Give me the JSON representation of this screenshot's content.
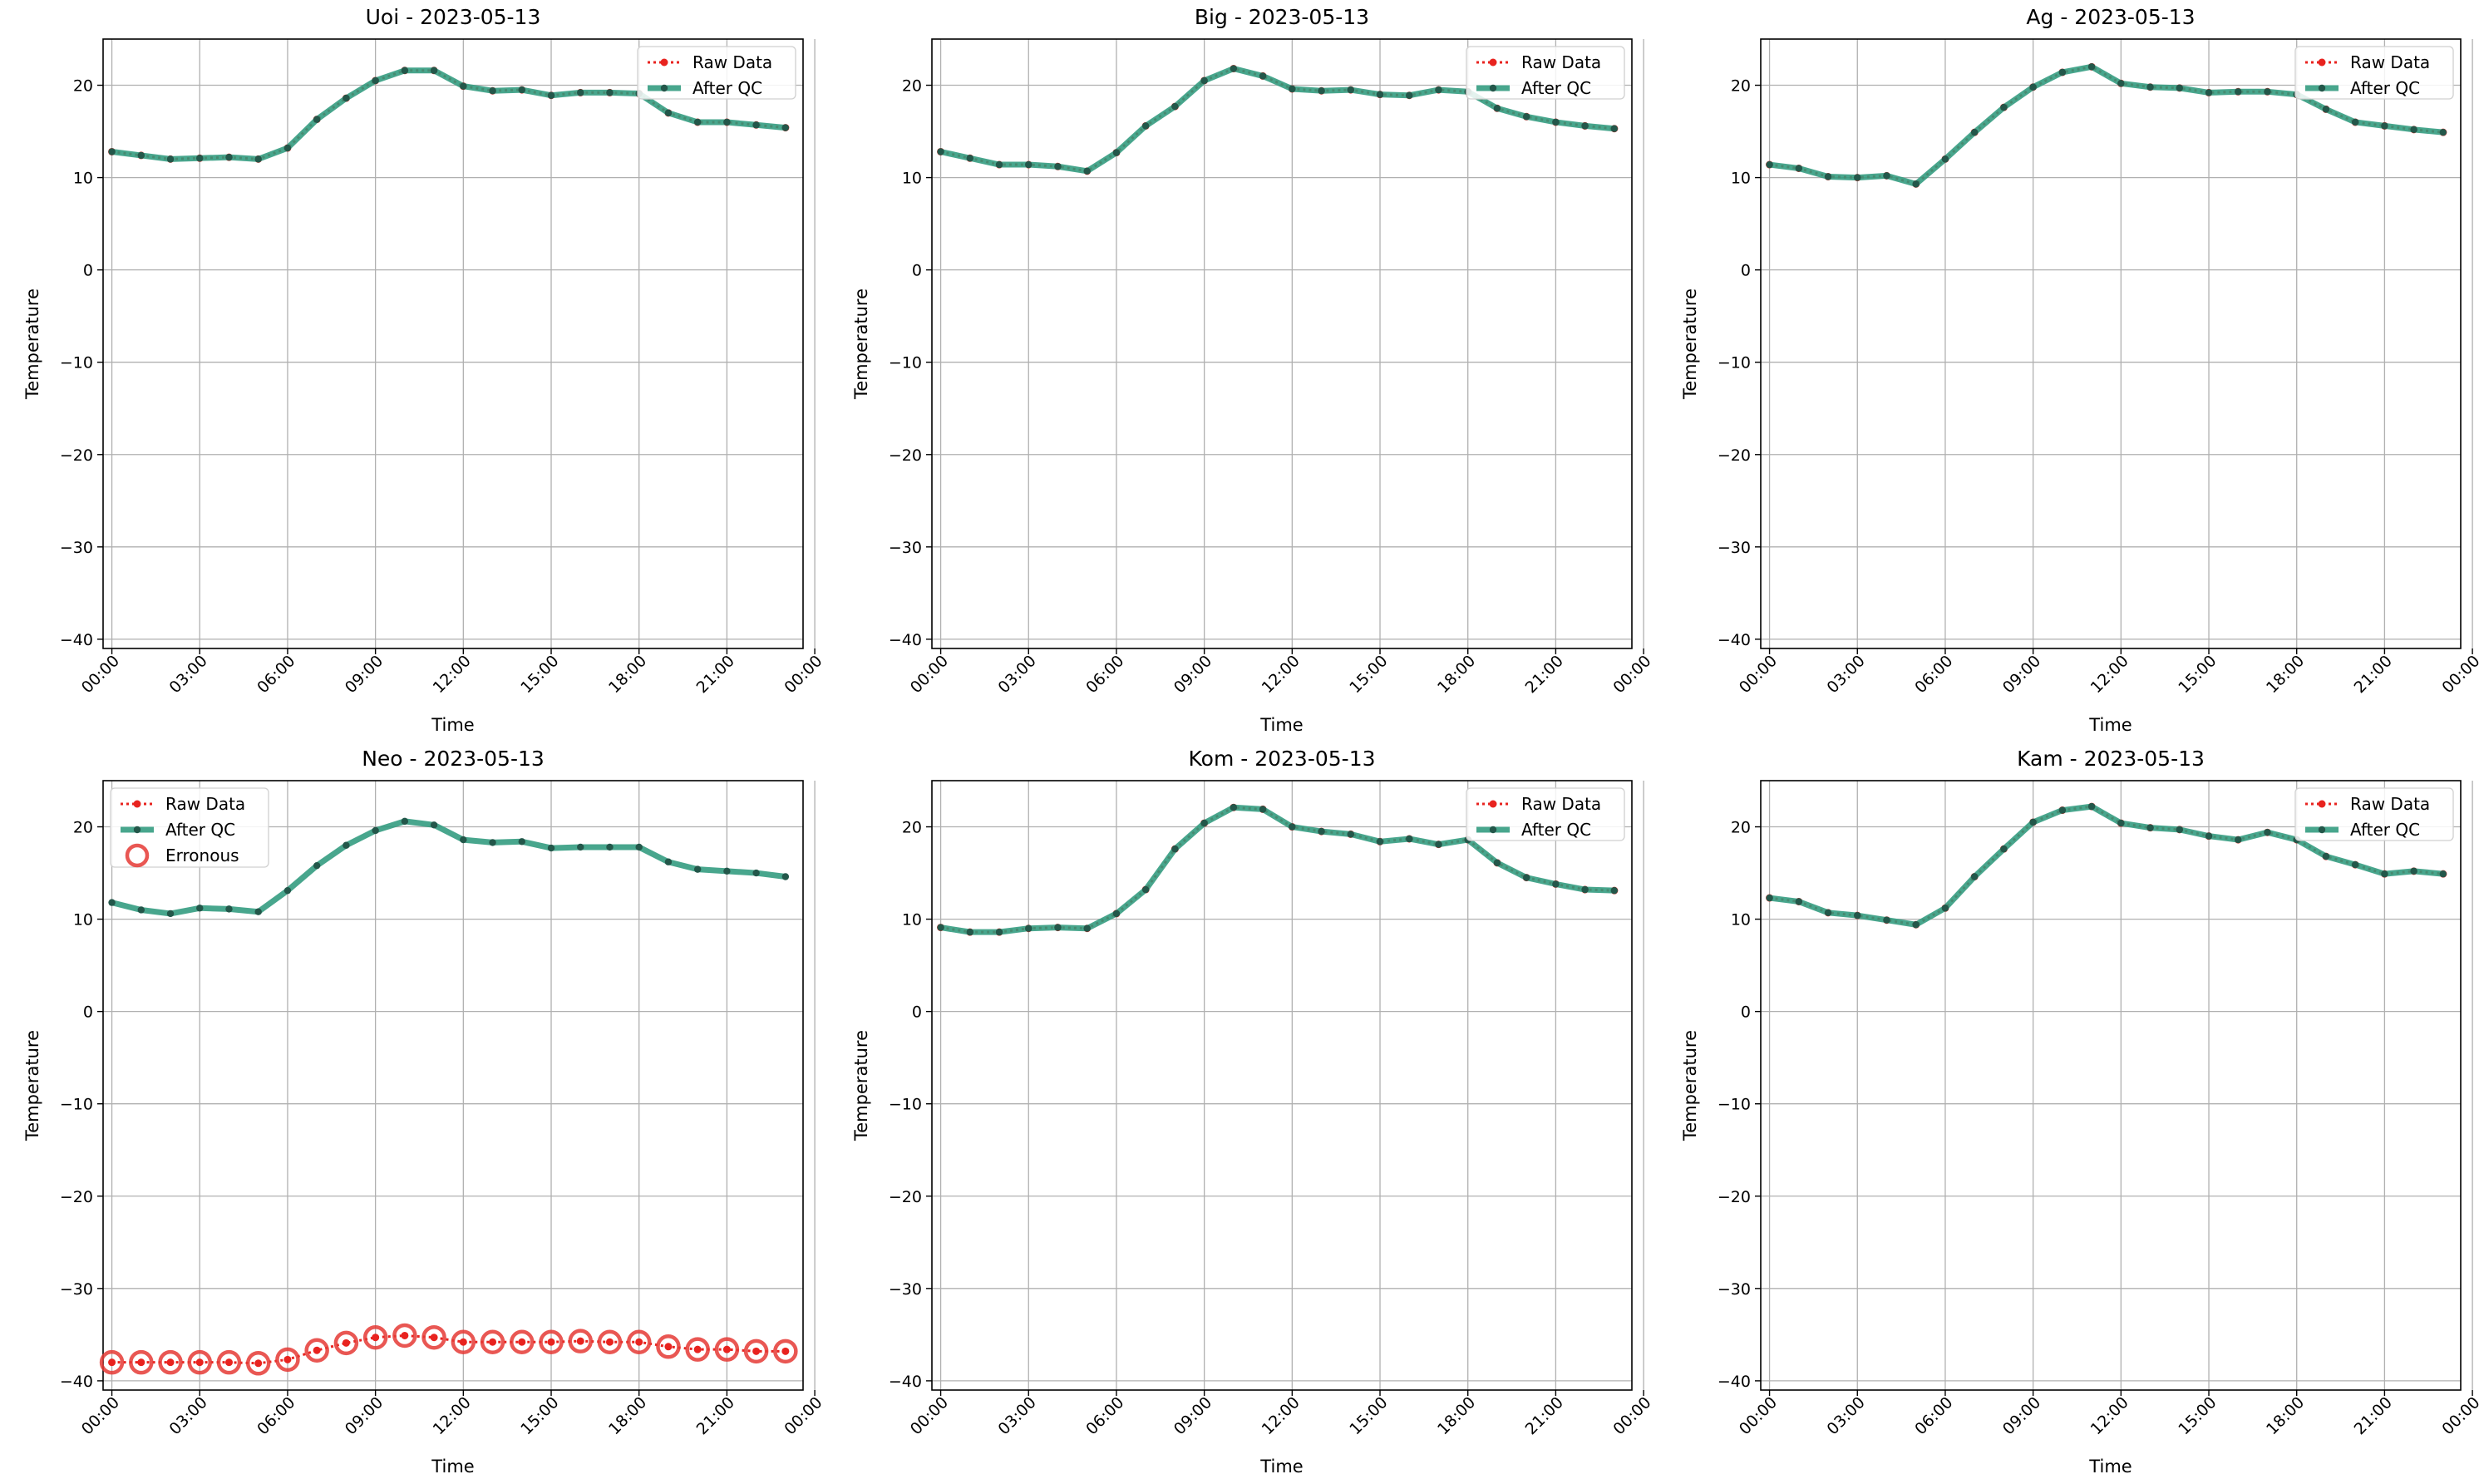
{
  "colors": {
    "raw": "#e8231f",
    "qc": "#2f9a7d",
    "qc_marker": "#23574a",
    "err": "#e53935",
    "grid": "#b0b0b0"
  },
  "legend": {
    "raw": "Raw Data",
    "qc": "After QC",
    "err": "Erronous"
  },
  "x_ticks": [
    "00:00",
    "03:00",
    "06:00",
    "09:00",
    "12:00",
    "15:00",
    "18:00",
    "21:00",
    "00:00"
  ],
  "y_ticks": [
    "20",
    "10",
    "0",
    "−10",
    "−20",
    "−30",
    "−40"
  ],
  "chart_data": [
    {
      "type": "line",
      "title": "Uoi - 2023-05-13",
      "xlabel": "Time",
      "ylabel": "Temperature",
      "x": [
        "00:00",
        "01:00",
        "02:00",
        "03:00",
        "04:00",
        "05:00",
        "06:00",
        "07:00",
        "08:00",
        "09:00",
        "10:00",
        "11:00",
        "12:00",
        "13:00",
        "14:00",
        "15:00",
        "16:00",
        "17:00",
        "18:00",
        "19:00",
        "20:00",
        "21:00",
        "22:00",
        "23:00"
      ],
      "xlim_hours": [
        -0.3,
        23.6
      ],
      "ylim": [
        -41,
        25
      ],
      "grid": true,
      "legend_position": "top-right",
      "series": [
        {
          "name": "Raw Data",
          "values": [
            12.8,
            12.4,
            12.0,
            12.1,
            12.2,
            12.0,
            13.2,
            16.3,
            18.6,
            20.5,
            21.6,
            21.6,
            19.9,
            19.4,
            19.5,
            18.9,
            19.2,
            19.2,
            19.1,
            17.0,
            16.0,
            16.0,
            15.7,
            15.4
          ]
        },
        {
          "name": "After QC",
          "values": [
            12.8,
            12.4,
            12.0,
            12.1,
            12.2,
            12.0,
            13.2,
            16.3,
            18.6,
            20.5,
            21.6,
            21.6,
            19.9,
            19.4,
            19.5,
            18.9,
            19.2,
            19.2,
            19.1,
            17.0,
            16.0,
            16.0,
            15.7,
            15.4
          ]
        }
      ]
    },
    {
      "type": "line",
      "title": "Big - 2023-05-13",
      "xlabel": "Time",
      "ylabel": "Temperature",
      "x": [
        "00:00",
        "01:00",
        "02:00",
        "03:00",
        "04:00",
        "05:00",
        "06:00",
        "07:00",
        "08:00",
        "09:00",
        "10:00",
        "11:00",
        "12:00",
        "13:00",
        "14:00",
        "15:00",
        "16:00",
        "17:00",
        "18:00",
        "19:00",
        "20:00",
        "21:00",
        "22:00",
        "23:00"
      ],
      "xlim_hours": [
        -0.3,
        23.6
      ],
      "ylim": [
        -41,
        25
      ],
      "grid": true,
      "legend_position": "top-right",
      "series": [
        {
          "name": "Raw Data",
          "values": [
            12.8,
            12.1,
            11.4,
            11.4,
            11.2,
            10.7,
            12.7,
            15.6,
            17.7,
            20.5,
            21.8,
            21.0,
            19.6,
            19.4,
            19.5,
            19.0,
            18.9,
            19.5,
            19.3,
            17.5,
            16.6,
            16.0,
            15.6,
            15.3
          ]
        },
        {
          "name": "After QC",
          "values": [
            12.8,
            12.1,
            11.4,
            11.4,
            11.2,
            10.7,
            12.7,
            15.6,
            17.7,
            20.5,
            21.8,
            21.0,
            19.6,
            19.4,
            19.5,
            19.0,
            18.9,
            19.5,
            19.3,
            17.5,
            16.6,
            16.0,
            15.6,
            15.3
          ]
        }
      ]
    },
    {
      "type": "line",
      "title": "Ag - 2023-05-13",
      "xlabel": "Time",
      "ylabel": "Temperature",
      "x": [
        "00:00",
        "01:00",
        "02:00",
        "03:00",
        "04:00",
        "05:00",
        "06:00",
        "07:00",
        "08:00",
        "09:00",
        "10:00",
        "11:00",
        "12:00",
        "13:00",
        "14:00",
        "15:00",
        "16:00",
        "17:00",
        "18:00",
        "19:00",
        "20:00",
        "21:00",
        "22:00",
        "23:00"
      ],
      "xlim_hours": [
        -0.3,
        23.6
      ],
      "ylim": [
        -41,
        25
      ],
      "grid": true,
      "legend_position": "top-right",
      "series": [
        {
          "name": "Raw Data",
          "values": [
            11.4,
            11.0,
            10.1,
            10.0,
            10.2,
            9.3,
            12.0,
            14.9,
            17.6,
            19.8,
            21.4,
            22.0,
            20.2,
            19.8,
            19.7,
            19.2,
            19.3,
            19.3,
            19.0,
            17.4,
            16.0,
            15.6,
            15.2,
            14.9
          ]
        },
        {
          "name": "After QC",
          "values": [
            11.4,
            11.0,
            10.1,
            10.0,
            10.2,
            9.3,
            12.0,
            14.9,
            17.6,
            19.8,
            21.4,
            22.0,
            20.2,
            19.8,
            19.7,
            19.2,
            19.3,
            19.3,
            19.0,
            17.4,
            16.0,
            15.6,
            15.2,
            14.9
          ]
        }
      ]
    },
    {
      "type": "line",
      "title": "Neo - 2023-05-13",
      "xlabel": "Time",
      "ylabel": "Temperature",
      "x": [
        "00:00",
        "01:00",
        "02:00",
        "03:00",
        "04:00",
        "05:00",
        "06:00",
        "07:00",
        "08:00",
        "09:00",
        "10:00",
        "11:00",
        "12:00",
        "13:00",
        "14:00",
        "15:00",
        "16:00",
        "17:00",
        "18:00",
        "19:00",
        "20:00",
        "21:00",
        "22:00",
        "23:00"
      ],
      "xlim_hours": [
        -0.3,
        23.6
      ],
      "ylim": [
        -41,
        25
      ],
      "grid": true,
      "legend_position": "top-left",
      "series": [
        {
          "name": "Raw Data",
          "values": [
            -38.0,
            -38.0,
            -38.0,
            -38.0,
            -38.0,
            -38.1,
            -37.7,
            -36.7,
            -35.9,
            -35.3,
            -35.1,
            -35.3,
            -35.8,
            -35.8,
            -35.8,
            -35.8,
            -35.7,
            -35.8,
            -35.8,
            -36.3,
            -36.6,
            -36.6,
            -36.8,
            -36.8
          ]
        },
        {
          "name": "After QC",
          "values": [
            11.8,
            11.0,
            10.6,
            11.2,
            11.1,
            10.8,
            13.1,
            15.8,
            18.0,
            19.6,
            20.6,
            20.2,
            18.6,
            18.3,
            18.4,
            17.7,
            17.8,
            17.8,
            17.8,
            16.2,
            15.4,
            15.2,
            15.0,
            14.6
          ]
        },
        {
          "name": "Erronous",
          "hours": [
            0,
            1,
            2,
            3,
            4,
            5,
            6,
            7,
            8,
            9,
            10,
            11,
            12,
            13,
            14,
            15,
            16,
            17,
            18,
            19,
            20,
            21,
            22,
            23
          ],
          "values": [
            -38.0,
            -38.0,
            -38.0,
            -38.0,
            -38.0,
            -38.1,
            -37.7,
            -36.7,
            -35.9,
            -35.3,
            -35.1,
            -35.3,
            -35.8,
            -35.8,
            -35.8,
            -35.8,
            -35.7,
            -35.8,
            -35.8,
            -36.3,
            -36.6,
            -36.6,
            -36.8,
            -36.8
          ]
        }
      ]
    },
    {
      "type": "line",
      "title": "Kom - 2023-05-13",
      "xlabel": "Time",
      "ylabel": "Temperature",
      "x": [
        "00:00",
        "01:00",
        "02:00",
        "03:00",
        "04:00",
        "05:00",
        "06:00",
        "07:00",
        "08:00",
        "09:00",
        "10:00",
        "11:00",
        "12:00",
        "13:00",
        "14:00",
        "15:00",
        "16:00",
        "17:00",
        "18:00",
        "19:00",
        "20:00",
        "21:00",
        "22:00",
        "23:00"
      ],
      "xlim_hours": [
        -0.3,
        23.6
      ],
      "ylim": [
        -41,
        25
      ],
      "grid": true,
      "legend_position": "top-right",
      "series": [
        {
          "name": "Raw Data",
          "values": [
            9.1,
            8.6,
            8.6,
            9.0,
            9.1,
            9.0,
            10.6,
            13.2,
            17.6,
            20.4,
            22.1,
            21.9,
            20.0,
            19.5,
            19.2,
            18.4,
            18.7,
            18.1,
            18.6,
            16.1,
            14.5,
            13.8,
            13.2,
            13.1
          ]
        },
        {
          "name": "After QC",
          "values": [
            9.1,
            8.6,
            8.6,
            9.0,
            9.1,
            9.0,
            10.6,
            13.2,
            17.6,
            20.4,
            22.1,
            21.9,
            20.0,
            19.5,
            19.2,
            18.4,
            18.7,
            18.1,
            18.6,
            16.1,
            14.5,
            13.8,
            13.2,
            13.1
          ]
        }
      ]
    },
    {
      "type": "line",
      "title": "Kam - 2023-05-13",
      "xlabel": "Time",
      "ylabel": "Temperature",
      "x": [
        "00:00",
        "01:00",
        "02:00",
        "03:00",
        "04:00",
        "05:00",
        "06:00",
        "07:00",
        "08:00",
        "09:00",
        "10:00",
        "11:00",
        "12:00",
        "13:00",
        "14:00",
        "15:00",
        "16:00",
        "17:00",
        "18:00",
        "19:00",
        "20:00",
        "21:00",
        "22:00",
        "23:00"
      ],
      "xlim_hours": [
        -0.3,
        23.6
      ],
      "ylim": [
        -41,
        25
      ],
      "grid": true,
      "legend_position": "top-right",
      "series": [
        {
          "name": "Raw Data",
          "values": [
            12.3,
            11.9,
            10.7,
            10.4,
            9.9,
            9.4,
            11.2,
            14.6,
            17.6,
            20.5,
            21.8,
            22.2,
            20.4,
            19.9,
            19.7,
            19.0,
            18.6,
            19.4,
            18.6,
            16.8,
            15.9,
            14.9,
            15.2,
            14.9
          ]
        },
        {
          "name": "After QC",
          "values": [
            12.3,
            11.9,
            10.7,
            10.4,
            9.9,
            9.4,
            11.2,
            14.6,
            17.6,
            20.5,
            21.8,
            22.2,
            20.4,
            19.9,
            19.7,
            19.0,
            18.6,
            19.4,
            18.6,
            16.8,
            15.9,
            14.9,
            15.2,
            14.9
          ]
        }
      ]
    }
  ]
}
